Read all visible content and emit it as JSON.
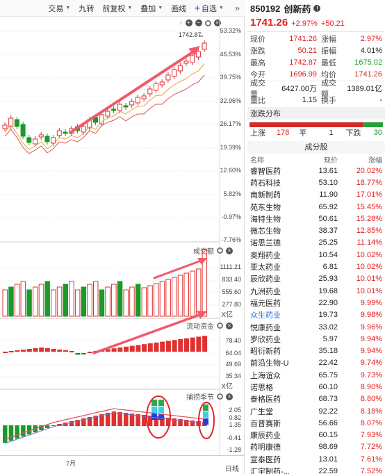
{
  "toolbar": {
    "items": [
      "交易",
      "九转",
      "前复权",
      "叠加",
      "画线",
      "自选"
    ],
    "more": "»"
  },
  "kline": {
    "y_labels": [
      "53.32%",
      "46.53%",
      "39.75%",
      "32.96%",
      "26.17%",
      "19.39%",
      "12.60%",
      "5.82%",
      "-0.97%",
      "-7.76%"
    ],
    "high_label": "1742.87"
  },
  "volume": {
    "label": "成交额",
    "y_labels": [
      "1111.21",
      "833.40",
      "555.60",
      "277.80"
    ],
    "unit": "X亿"
  },
  "flow": {
    "label": "流动资金",
    "y_labels": [
      "78.40",
      "64.04",
      "49.69",
      "35.34"
    ],
    "unit": "X亿"
  },
  "indicator": {
    "label": "捕捞季节",
    "y_labels": [
      "2.05",
      "0.82",
      "-0.41",
      "-1.28"
    ],
    "extra_label": "1.35"
  },
  "date_axis": {
    "month": "7月",
    "right_label": "日线"
  },
  "stock": {
    "code": "850192",
    "name": "创新药",
    "info_icon": "!",
    "price": "1741.26",
    "pct": "+2.97%",
    "chg": "+50.21"
  },
  "quote": [
    {
      "l": "现价",
      "v": "1741.26",
      "vc": "red",
      "l2": "涨幅",
      "v2": "2.97%",
      "v2c": "red"
    },
    {
      "l": "涨跌",
      "v": "50.21",
      "vc": "red",
      "l2": "振幅",
      "v2": "4.01%",
      "v2c": "dark"
    },
    {
      "l": "最高",
      "v": "1742.87",
      "vc": "red",
      "l2": "最低",
      "v2": "1675.02",
      "v2c": "green"
    },
    {
      "l": "今开",
      "v": "1696.99",
      "vc": "red",
      "l2": "均价",
      "v2": "1741.26",
      "v2c": "red"
    },
    {
      "l": "成交量",
      "v": "6427.00万",
      "vc": "dark",
      "l2": "成交额",
      "v2": "1389.01亿",
      "v2c": "dark"
    },
    {
      "l": "量比",
      "v": "1.15",
      "vc": "dark",
      "l2": "换手",
      "v2": "-",
      "v2c": "dark"
    }
  ],
  "distribution": {
    "title": "涨跌分布",
    "up_label": "上涨",
    "up": "178",
    "flat_label": "平",
    "flat": "1",
    "down_label": "下跌",
    "down": "30",
    "up_frac": 0.852,
    "flat_frac": 0.005,
    "down_frac": 0.143
  },
  "components": {
    "title": "成分股",
    "headers": [
      "名称",
      "现价",
      "涨幅"
    ],
    "rows": [
      {
        "name": "睿智医药",
        "price": "13.61",
        "chg": "20.02%"
      },
      {
        "name": "药石科技",
        "price": "53.10",
        "chg": "18.77%"
      },
      {
        "name": "南新制药",
        "price": "11.90",
        "chg": "17.01%"
      },
      {
        "name": "苑东生物",
        "price": "65.92",
        "chg": "15.45%"
      },
      {
        "name": "海特生物",
        "price": "50.61",
        "chg": "15.28%"
      },
      {
        "name": "微芯生物",
        "price": "38.37",
        "chg": "12.85%"
      },
      {
        "name": "诺思兰德",
        "price": "25.25",
        "chg": "11.14%"
      },
      {
        "name": "奥翔药业",
        "price": "10.54",
        "chg": "10.02%"
      },
      {
        "name": "亚太药业",
        "price": "6.81",
        "chg": "10.02%"
      },
      {
        "name": "辰欣药业",
        "price": "25.93",
        "chg": "10.01%"
      },
      {
        "name": "九洲药业",
        "price": "19.68",
        "chg": "10.01%"
      },
      {
        "name": "福元医药",
        "price": "22.90",
        "chg": "9.99%"
      },
      {
        "name": "众生药业",
        "price": "19.73",
        "chg": "9.98%",
        "blue": true
      },
      {
        "name": "悦康药业",
        "price": "33.02",
        "chg": "9.96%"
      },
      {
        "name": "罗欣药业",
        "price": "5.97",
        "chg": "9.94%"
      },
      {
        "name": "昭衍新药",
        "price": "35.18",
        "chg": "9.94%"
      },
      {
        "name": "前沿生物-U",
        "price": "22.42",
        "chg": "9.74%"
      },
      {
        "name": "上海谊众",
        "price": "65.75",
        "chg": "9.73%"
      },
      {
        "name": "诺思格",
        "price": "60.10",
        "chg": "8.90%"
      },
      {
        "name": "泰格医药",
        "price": "68.73",
        "chg": "8.80%"
      },
      {
        "name": "广生堂",
        "price": "92.22",
        "chg": "8.18%"
      },
      {
        "name": "百普赛斯",
        "price": "56.66",
        "chg": "8.07%"
      },
      {
        "name": "康辰药业",
        "price": "60.15",
        "chg": "7.93%"
      },
      {
        "name": "药明康德",
        "price": "98.69",
        "chg": "7.72%"
      },
      {
        "name": "宣泰医药",
        "price": "13.01",
        "chg": "7.61%"
      },
      {
        "name": "汇宇制药-...",
        "price": "22.59",
        "chg": "7.52%"
      }
    ]
  }
}
